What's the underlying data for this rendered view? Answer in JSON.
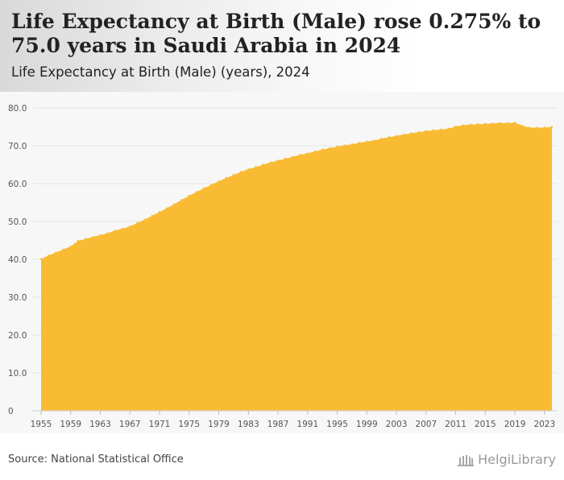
{
  "title": "Life Expectancy at Birth (Male) rose 0.275% to 75.0 years in Saudi Arabia in 2024",
  "subtitle": "Life Expectancy at Birth (Male) (years), 2024",
  "source": "Source: National Statistical Office",
  "brand": "HelgiLibrary",
  "colors": {
    "area": "#f8bb33",
    "grid": "#e4e4e4",
    "axis_text": "#555555"
  },
  "chart_data": {
    "type": "area",
    "title": "Life Expectancy at Birth (Male) rose 0.275% to 75.0 years in Saudi Arabia in 2024",
    "subtitle": "Life Expectancy at Birth (Male) (years), 2024",
    "xlabel": "",
    "ylabel": "",
    "ylim": [
      0,
      80
    ],
    "yticks": [
      "0",
      "10.0",
      "20.0",
      "30.0",
      "40.0",
      "50.0",
      "60.0",
      "70.0",
      "80.0"
    ],
    "xticks": [
      1955,
      1959,
      1963,
      1967,
      1971,
      1975,
      1979,
      1983,
      1987,
      1991,
      1995,
      1999,
      2003,
      2007,
      2011,
      2015,
      2019,
      2023
    ],
    "grid": true,
    "x": [
      1955,
      1956,
      1957,
      1958,
      1959,
      1960,
      1961,
      1962,
      1963,
      1964,
      1965,
      1966,
      1967,
      1968,
      1969,
      1970,
      1971,
      1972,
      1973,
      1974,
      1975,
      1976,
      1977,
      1978,
      1979,
      1980,
      1981,
      1982,
      1983,
      1984,
      1985,
      1986,
      1987,
      1988,
      1989,
      1990,
      1991,
      1992,
      1993,
      1994,
      1995,
      1996,
      1997,
      1998,
      1999,
      2000,
      2001,
      2002,
      2003,
      2004,
      2005,
      2006,
      2007,
      2008,
      2009,
      2010,
      2011,
      2012,
      2013,
      2014,
      2015,
      2016,
      2017,
      2018,
      2019,
      2020,
      2021,
      2022,
      2023,
      2024
    ],
    "series": [
      {
        "values": [
          40.1,
          41.0,
          41.8,
          42.6,
          43.4,
          44.9,
          45.4,
          45.9,
          46.4,
          46.9,
          47.6,
          48.1,
          48.7,
          49.6,
          50.5,
          51.5,
          52.5,
          53.5,
          54.6,
          55.7,
          56.8,
          57.8,
          58.8,
          59.7,
          60.6,
          61.5,
          62.3,
          63.1,
          63.8,
          64.4,
          65.0,
          65.6,
          66.1,
          66.6,
          67.1,
          67.6,
          68.0,
          68.5,
          69.0,
          69.4,
          69.8,
          70.1,
          70.4,
          70.8,
          71.1,
          71.4,
          71.9,
          72.3,
          72.6,
          73.0,
          73.3,
          73.6,
          73.9,
          74.1,
          74.3,
          74.5,
          75.1,
          75.4,
          75.6,
          75.7,
          75.8,
          75.9,
          76.0,
          76.0,
          76.1,
          75.3,
          74.8,
          74.8,
          74.8,
          75.0
        ]
      }
    ]
  }
}
